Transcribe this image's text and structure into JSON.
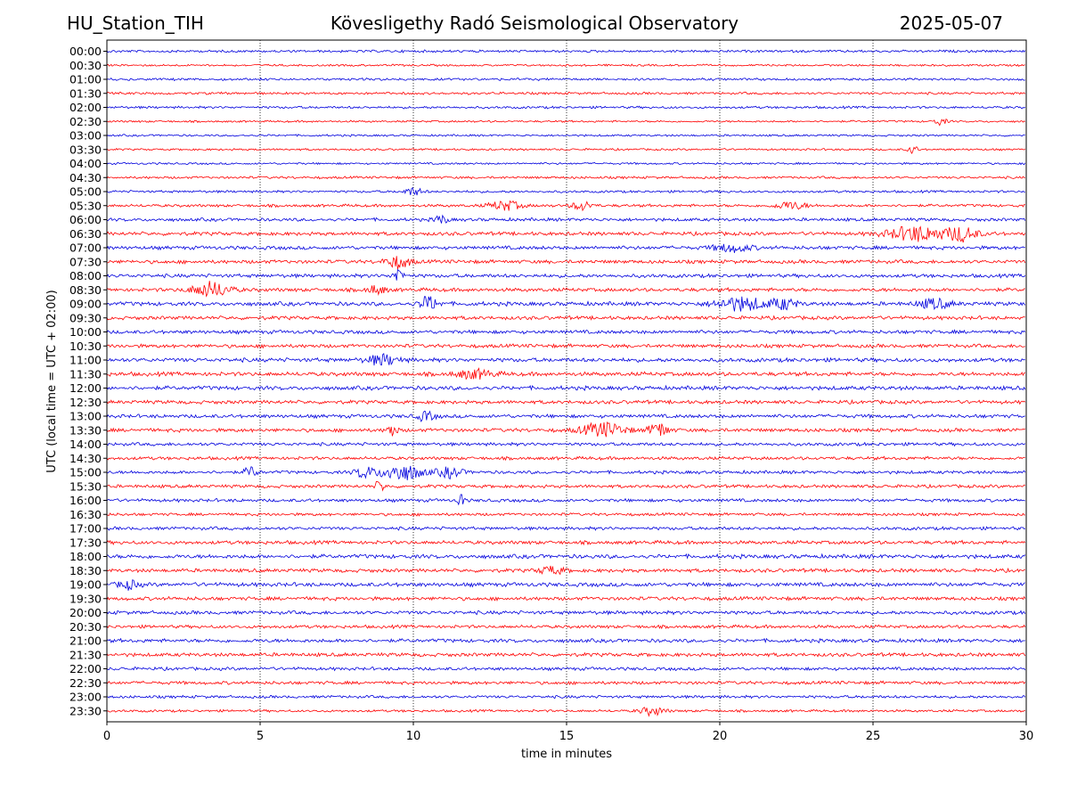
{
  "header": {
    "station": "HU_Station_TIH",
    "observatory": "Kövesligethy Radó Seismological Observatory",
    "date": "2025-05-07"
  },
  "chart_data": {
    "type": "line",
    "title": "Kövesligethy Radó Seismological Observatory",
    "xlabel": "time in minutes",
    "ylabel": "UTC (local time = UTC + 02:00)",
    "xlim": [
      0,
      30
    ],
    "x_ticks": [
      0,
      5,
      10,
      15,
      20,
      25,
      30
    ],
    "grid": "vertical dotted",
    "series_colors": [
      "#0000dd",
      "#ff0000"
    ],
    "rows": [
      "00:00",
      "00:30",
      "01:00",
      "01:30",
      "02:00",
      "02:30",
      "03:00",
      "03:30",
      "04:00",
      "04:30",
      "05:00",
      "05:30",
      "06:00",
      "06:30",
      "07:00",
      "07:30",
      "08:00",
      "08:30",
      "09:00",
      "09:30",
      "10:00",
      "10:30",
      "11:00",
      "11:30",
      "12:00",
      "12:30",
      "13:00",
      "13:30",
      "14:00",
      "14:30",
      "15:00",
      "15:30",
      "16:00",
      "16:30",
      "17:00",
      "17:30",
      "18:00",
      "18:30",
      "19:00",
      "19:30",
      "20:00",
      "20:30",
      "21:00",
      "21:30",
      "22:00",
      "22:30",
      "23:00",
      "23:30"
    ],
    "noise_level": [
      0.6,
      0.5,
      0.6,
      0.6,
      0.6,
      0.5,
      0.5,
      0.5,
      0.5,
      0.6,
      0.6,
      0.7,
      0.8,
      0.9,
      0.9,
      0.9,
      0.9,
      0.9,
      1.0,
      0.9,
      0.9,
      0.9,
      1.0,
      1.0,
      1.0,
      0.9,
      0.9,
      0.9,
      0.8,
      0.8,
      0.8,
      0.8,
      0.8,
      0.7,
      0.8,
      0.9,
      1.0,
      0.9,
      1.0,
      0.9,
      0.9,
      0.8,
      0.9,
      0.9,
      0.8,
      0.8,
      0.7,
      0.6
    ],
    "events": [
      {
        "row": "02:30",
        "minute": 27.2,
        "amp": 1.5,
        "width": 0.2
      },
      {
        "row": "03:30",
        "minute": 26.3,
        "amp": 1.8,
        "width": 0.15
      },
      {
        "row": "05:00",
        "minute": 10.0,
        "amp": 1.6,
        "width": 0.3
      },
      {
        "row": "05:30",
        "minute": 13.0,
        "amp": 2.0,
        "width": 0.5
      },
      {
        "row": "05:30",
        "minute": 15.5,
        "amp": 2.0,
        "width": 0.3
      },
      {
        "row": "05:30",
        "minute": 22.3,
        "amp": 1.6,
        "width": 0.5
      },
      {
        "row": "06:00",
        "minute": 10.9,
        "amp": 2.0,
        "width": 0.2
      },
      {
        "row": "06:30",
        "minute": 26.4,
        "amp": 3.2,
        "width": 0.9
      },
      {
        "row": "06:30",
        "minute": 27.9,
        "amp": 3.0,
        "width": 0.5
      },
      {
        "row": "07:00",
        "minute": 20.4,
        "amp": 1.6,
        "width": 0.6
      },
      {
        "row": "07:30",
        "minute": 9.5,
        "amp": 2.6,
        "width": 0.4
      },
      {
        "row": "08:00",
        "minute": 9.5,
        "amp": 3.4,
        "width": 0.15
      },
      {
        "row": "08:30",
        "minute": 3.4,
        "amp": 3.2,
        "width": 0.6
      },
      {
        "row": "08:30",
        "minute": 8.8,
        "amp": 1.8,
        "width": 0.3
      },
      {
        "row": "09:00",
        "minute": 10.5,
        "amp": 3.0,
        "width": 0.3
      },
      {
        "row": "09:00",
        "minute": 20.7,
        "amp": 2.8,
        "width": 0.8
      },
      {
        "row": "09:00",
        "minute": 22.1,
        "amp": 2.2,
        "width": 0.4
      },
      {
        "row": "09:00",
        "minute": 27.0,
        "amp": 2.0,
        "width": 0.5
      },
      {
        "row": "11:00",
        "minute": 9.0,
        "amp": 2.2,
        "width": 0.5
      },
      {
        "row": "11:30",
        "minute": 12.0,
        "amp": 1.8,
        "width": 0.6
      },
      {
        "row": "13:00",
        "minute": 10.4,
        "amp": 1.8,
        "width": 0.3
      },
      {
        "row": "13:30",
        "minute": 9.3,
        "amp": 3.2,
        "width": 0.15
      },
      {
        "row": "13:30",
        "minute": 16.2,
        "amp": 3.0,
        "width": 0.7
      },
      {
        "row": "13:30",
        "minute": 18.0,
        "amp": 3.2,
        "width": 0.3
      },
      {
        "row": "15:00",
        "minute": 4.7,
        "amp": 2.4,
        "width": 0.2
      },
      {
        "row": "15:00",
        "minute": 8.4,
        "amp": 2.2,
        "width": 0.3
      },
      {
        "row": "15:00",
        "minute": 9.6,
        "amp": 3.4,
        "width": 0.7
      },
      {
        "row": "15:00",
        "minute": 11.2,
        "amp": 2.2,
        "width": 0.4
      },
      {
        "row": "15:30",
        "minute": 8.9,
        "amp": 2.4,
        "width": 0.15
      },
      {
        "row": "16:00",
        "minute": 11.55,
        "amp": 4.6,
        "width": 0.08
      },
      {
        "row": "18:30",
        "minute": 14.5,
        "amp": 1.6,
        "width": 0.4
      },
      {
        "row": "19:00",
        "minute": 0.7,
        "amp": 1.8,
        "width": 0.3
      },
      {
        "row": "23:30",
        "minute": 17.8,
        "amp": 1.8,
        "width": 0.4
      }
    ]
  }
}
